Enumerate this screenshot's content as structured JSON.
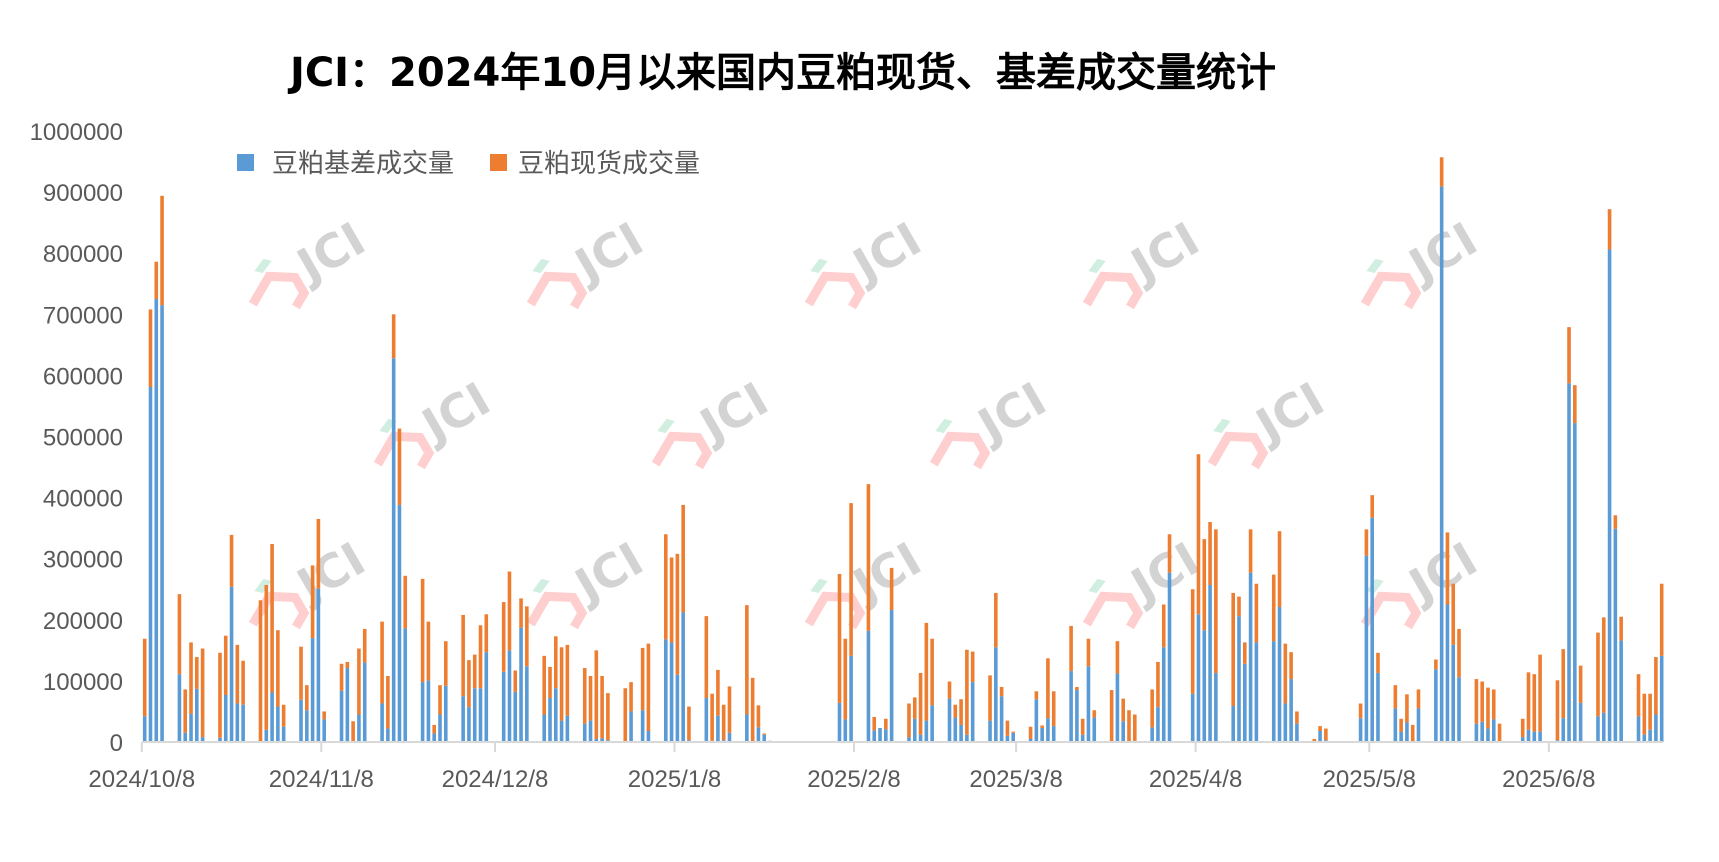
{
  "chart_data": {
    "type": "bar",
    "stacked": true,
    "title": "JCI：2024年10月以来国内豆粕现货、基差成交量统计",
    "xlabel": "",
    "ylabel": "",
    "ylim": [
      0,
      1000000
    ],
    "y_ticks": [
      "0",
      "100000",
      "200000",
      "300000",
      "400000",
      "500000",
      "600000",
      "700000",
      "800000",
      "900000",
      "1000000"
    ],
    "x_tick_labels": [
      "2024/10/8",
      "2024/11/8",
      "2024/12/8",
      "2025/1/8",
      "2025/2/8",
      "2025/3/8",
      "2025/4/8",
      "2025/5/8",
      "2025/6/8"
    ],
    "x_axis": "date",
    "grid": false,
    "legend_position": "top-left",
    "watermark": "JCI",
    "series": [
      {
        "name": "豆粕基差成交量",
        "color": "#5B9BD5"
      },
      {
        "name": "豆粕现货成交量",
        "color": "#ED7D31"
      }
    ],
    "columns": [
      "date",
      "豆粕基差成交量",
      "豆粕现货成交量"
    ],
    "points": [
      [
        "2024/10/8",
        42000,
        127000
      ],
      [
        "2024/10/9",
        581000,
        127000
      ],
      [
        "2024/10/10",
        725000,
        61000
      ],
      [
        "2024/10/11",
        715000,
        179000
      ],
      [
        "2024/10/14",
        111000,
        131000
      ],
      [
        "2024/10/15",
        15000,
        71000
      ],
      [
        "2024/10/16",
        46000,
        117000
      ],
      [
        "2024/10/17",
        87000,
        52000
      ],
      [
        "2024/10/18",
        8000,
        145000
      ],
      [
        "2024/10/21",
        7000,
        139000
      ],
      [
        "2024/10/22",
        77000,
        97000
      ],
      [
        "2024/10/23",
        254000,
        85000
      ],
      [
        "2024/10/24",
        63000,
        96000
      ],
      [
        "2024/10/25",
        61000,
        72000
      ],
      [
        "2024/10/28",
        1000,
        231000
      ],
      [
        "2024/10/29",
        20000,
        237000
      ],
      [
        "2024/10/30",
        81000,
        243000
      ],
      [
        "2024/10/31",
        58000,
        125000
      ],
      [
        "2024/11/1",
        25000,
        36000
      ],
      [
        "2024/11/4",
        69000,
        87000
      ],
      [
        "2024/11/5",
        52000,
        41000
      ],
      [
        "2024/11/6",
        170000,
        119000
      ],
      [
        "2024/11/7",
        251000,
        114000
      ],
      [
        "2024/11/8",
        37000,
        13000
      ],
      [
        "2024/11/11",
        84000,
        44000
      ],
      [
        "2024/11/12",
        121000,
        10000
      ],
      [
        "2024/11/13",
        0,
        34000
      ],
      [
        "2024/11/14",
        45000,
        108000
      ],
      [
        "2024/11/15",
        130000,
        55000
      ],
      [
        "2024/11/18",
        63000,
        134000
      ],
      [
        "2024/11/19",
        22000,
        86000
      ],
      [
        "2024/11/20",
        628000,
        72000
      ],
      [
        "2024/11/21",
        388000,
        125000
      ],
      [
        "2024/11/22",
        186000,
        86000
      ],
      [
        "2024/11/25",
        98000,
        169000
      ],
      [
        "2024/11/26",
        101000,
        96000
      ],
      [
        "2024/11/27",
        14000,
        14000
      ],
      [
        "2024/11/28",
        45000,
        48000
      ],
      [
        "2024/11/29",
        92000,
        73000
      ],
      [
        "2024/12/2",
        75000,
        133000
      ],
      [
        "2024/12/3",
        57000,
        77000
      ],
      [
        "2024/12/4",
        88000,
        55000
      ],
      [
        "2024/12/5",
        88000,
        103000
      ],
      [
        "2024/12/6",
        147000,
        62000
      ],
      [
        "2024/12/9",
        115000,
        114000
      ],
      [
        "2024/12/10",
        150000,
        129000
      ],
      [
        "2024/12/11",
        82000,
        35000
      ],
      [
        "2024/12/12",
        187000,
        48000
      ],
      [
        "2024/12/13",
        124000,
        98000
      ],
      [
        "2024/12/16",
        45000,
        96000
      ],
      [
        "2024/12/17",
        72000,
        51000
      ],
      [
        "2024/12/18",
        88000,
        85000
      ],
      [
        "2024/12/19",
        35000,
        120000
      ],
      [
        "2024/12/20",
        43000,
        116000
      ],
      [
        "2024/12/23",
        30000,
        91000
      ],
      [
        "2024/12/24",
        35000,
        73000
      ],
      [
        "2024/12/25",
        5000,
        145000
      ],
      [
        "2024/12/26",
        6000,
        102000
      ],
      [
        "2024/12/27",
        3000,
        77000
      ],
      [
        "2024/12/30",
        1000,
        87000
      ],
      [
        "2024/12/31",
        50000,
        48000
      ],
      [
        "2025/1/2",
        52000,
        102000
      ],
      [
        "2025/1/3",
        18000,
        143000
      ],
      [
        "2025/1/6",
        168000,
        172000
      ],
      [
        "2025/1/7",
        163000,
        139000
      ],
      [
        "2025/1/8",
        110000,
        198000
      ],
      [
        "2025/1/9",
        212000,
        176000
      ],
      [
        "2025/1/10",
        3000,
        55000
      ],
      [
        "2025/1/13",
        72000,
        134000
      ],
      [
        "2025/1/14",
        2000,
        77000
      ],
      [
        "2025/1/15",
        43000,
        75000
      ],
      [
        "2025/1/16",
        3000,
        58000
      ],
      [
        "2025/1/17",
        15000,
        76000
      ],
      [
        "2025/1/20",
        45000,
        179000
      ],
      [
        "2025/1/21",
        0,
        105000
      ],
      [
        "2025/1/22",
        24000,
        36000
      ],
      [
        "2025/1/23",
        12000,
        2000
      ],
      [
        "2025/1/24",
        2000,
        0
      ],
      [
        "2025/2/5",
        64000,
        211000
      ],
      [
        "2025/2/6",
        37000,
        132000
      ],
      [
        "2025/2/7",
        141000,
        250000
      ],
      [
        "2025/2/10",
        182000,
        240000
      ],
      [
        "2025/2/11",
        19000,
        22000
      ],
      [
        "2025/2/12",
        23000,
        0
      ],
      [
        "2025/2/13",
        21000,
        17000
      ],
      [
        "2025/2/14",
        216000,
        69000
      ],
      [
        "2025/2/17",
        8000,
        55000
      ],
      [
        "2025/2/18",
        38000,
        35000
      ],
      [
        "2025/2/19",
        12000,
        101000
      ],
      [
        "2025/2/20",
        35000,
        160000
      ],
      [
        "2025/2/21",
        60000,
        109000
      ],
      [
        "2025/2/24",
        71000,
        28000
      ],
      [
        "2025/2/25",
        40000,
        21000
      ],
      [
        "2025/2/26",
        28000,
        42000
      ],
      [
        "2025/2/27",
        12000,
        139000
      ],
      [
        "2025/2/28",
        98000,
        50000
      ],
      [
        "2025/3/3",
        35000,
        74000
      ],
      [
        "2025/3/4",
        155000,
        89000
      ],
      [
        "2025/3/5",
        75000,
        15000
      ],
      [
        "2025/3/6",
        10000,
        25000
      ],
      [
        "2025/3/7",
        15000,
        2000
      ],
      [
        "2025/3/10",
        5000,
        20000
      ],
      [
        "2025/3/11",
        70000,
        13000
      ],
      [
        "2025/3/12",
        23000,
        4000
      ],
      [
        "2025/3/13",
        39000,
        98000
      ],
      [
        "2025/3/14",
        26000,
        57000
      ],
      [
        "2025/3/17",
        116000,
        74000
      ],
      [
        "2025/3/18",
        85000,
        5000
      ],
      [
        "2025/3/19",
        12000,
        26000
      ],
      [
        "2025/3/20",
        124000,
        45000
      ],
      [
        "2025/3/21",
        40000,
        12000
      ],
      [
        "2025/3/24",
        0,
        85000
      ],
      [
        "2025/3/25",
        112000,
        53000
      ],
      [
        "2025/3/26",
        34000,
        37000
      ],
      [
        "2025/3/27",
        1000,
        51000
      ],
      [
        "2025/3/28",
        2000,
        43000
      ],
      [
        "2025/3/31",
        24000,
        62000
      ],
      [
        "2025/4/1",
        57000,
        74000
      ],
      [
        "2025/4/2",
        155000,
        70000
      ],
      [
        "2025/4/3",
        277000,
        63000
      ],
      [
        "2025/4/7",
        79000,
        171000
      ],
      [
        "2025/4/8",
        209000,
        262000
      ],
      [
        "2025/4/9",
        183000,
        149000
      ],
      [
        "2025/4/10",
        257000,
        103000
      ],
      [
        "2025/4/11",
        113000,
        235000
      ],
      [
        "2025/4/14",
        59000,
        185000
      ],
      [
        "2025/4/15",
        206000,
        32000
      ],
      [
        "2025/4/16",
        128000,
        35000
      ],
      [
        "2025/4/17",
        277000,
        71000
      ],
      [
        "2025/4/18",
        163000,
        96000
      ],
      [
        "2025/4/21",
        165000,
        109000
      ],
      [
        "2025/4/22",
        221000,
        124000
      ],
      [
        "2025/4/23",
        63000,
        98000
      ],
      [
        "2025/4/24",
        103000,
        44000
      ],
      [
        "2025/4/25",
        30000,
        20000
      ],
      [
        "2025/4/28",
        0,
        5000
      ],
      [
        "2025/4/29",
        18000,
        8000
      ],
      [
        "2025/4/30",
        3000,
        19000
      ],
      [
        "2025/5/6",
        39000,
        24000
      ],
      [
        "2025/5/7",
        305000,
        43000
      ],
      [
        "2025/5/8",
        367000,
        37000
      ],
      [
        "2025/5/9",
        113000,
        33000
      ],
      [
        "2025/5/12",
        55000,
        38000
      ],
      [
        "2025/5/13",
        17000,
        21000
      ],
      [
        "2025/5/14",
        32000,
        46000
      ],
      [
        "2025/5/15",
        0,
        28000
      ],
      [
        "2025/5/16",
        55000,
        31000
      ],
      [
        "2025/5/19",
        119000,
        16000
      ],
      [
        "2025/5/20",
        909000,
        48000
      ],
      [
        "2025/5/21",
        225000,
        118000
      ],
      [
        "2025/5/22",
        159000,
        100000
      ],
      [
        "2025/5/23",
        106000,
        79000
      ],
      [
        "2025/5/26",
        30000,
        73000
      ],
      [
        "2025/5/27",
        33000,
        66000
      ],
      [
        "2025/5/28",
        22000,
        67000
      ],
      [
        "2025/5/29",
        37000,
        49000
      ],
      [
        "2025/5/30",
        0,
        30000
      ],
      [
        "2025/6/3",
        8000,
        30000
      ],
      [
        "2025/6/4",
        20000,
        94000
      ],
      [
        "2025/6/5",
        17000,
        94000
      ],
      [
        "2025/6/6",
        17000,
        126000
      ],
      [
        "2025/6/9",
        3000,
        98000
      ],
      [
        "2025/6/10",
        39000,
        113000
      ],
      [
        "2025/6/11",
        587000,
        92000
      ],
      [
        "2025/6/12",
        522000,
        62000
      ],
      [
        "2025/6/13",
        64000,
        61000
      ],
      [
        "2025/6/16",
        42000,
        137000
      ],
      [
        "2025/6/17",
        48000,
        156000
      ],
      [
        "2025/6/18",
        806000,
        66000
      ],
      [
        "2025/6/19",
        349000,
        22000
      ],
      [
        "2025/6/20",
        166000,
        39000
      ],
      [
        "2025/6/23",
        42000,
        69000
      ],
      [
        "2025/6/24",
        12000,
        67000
      ],
      [
        "2025/6/25",
        20000,
        59000
      ],
      [
        "2025/6/26",
        45000,
        94000
      ],
      [
        "2025/6/27",
        141000,
        118000
      ]
    ]
  }
}
